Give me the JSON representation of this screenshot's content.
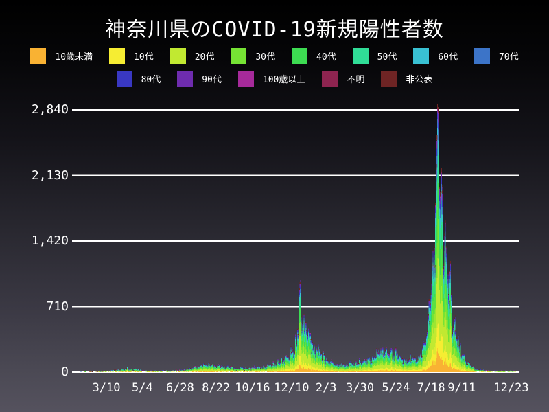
{
  "title": "神奈川県のCOVID-19新規陽性者数",
  "chart_data": {
    "type": "area",
    "stacked": true,
    "title": "神奈川県のCOVID-19新規陽性者数",
    "xlabel": "",
    "ylabel": "",
    "grid": true,
    "legend_position": "top",
    "background": "dark-gradient",
    "y_ticks": [
      "0",
      "710",
      "1,420",
      "2,130",
      "2,840"
    ],
    "y_tick_values": [
      0,
      710,
      1420,
      2130,
      2840
    ],
    "ylim": [
      0,
      2840
    ],
    "x_tick_labels": [
      "3/10",
      "5/4",
      "6/28",
      "8/22",
      "10/16",
      "12/10",
      "2/3",
      "3/30",
      "5/24",
      "7/18",
      "9/11",
      "12/23"
    ],
    "x_tick_days": [
      39,
      94,
      152,
      207,
      263,
      323,
      376,
      428,
      483,
      537,
      584,
      660
    ],
    "total_days": 668,
    "peak_value": 2840,
    "highlight_days": [
      336,
      547
    ],
    "total_keypoints": [
      [
        0,
        2
      ],
      [
        20,
        4
      ],
      [
        39,
        12
      ],
      [
        55,
        30
      ],
      [
        70,
        52
      ],
      [
        80,
        48
      ],
      [
        95,
        22
      ],
      [
        115,
        14
      ],
      [
        135,
        16
      ],
      [
        155,
        28
      ],
      [
        170,
        60
      ],
      [
        185,
        95
      ],
      [
        200,
        112
      ],
      [
        212,
        92
      ],
      [
        225,
        70
      ],
      [
        240,
        58
      ],
      [
        255,
        62
      ],
      [
        270,
        74
      ],
      [
        285,
        95
      ],
      [
        300,
        132
      ],
      [
        310,
        175
      ],
      [
        320,
        245
      ],
      [
        327,
        320
      ],
      [
        332,
        600
      ],
      [
        336,
        980
      ],
      [
        341,
        800
      ],
      [
        346,
        630
      ],
      [
        352,
        500
      ],
      [
        358,
        380
      ],
      [
        365,
        300
      ],
      [
        371,
        230
      ],
      [
        376,
        190
      ],
      [
        385,
        142
      ],
      [
        395,
        116
      ],
      [
        405,
        106
      ],
      [
        415,
        122
      ],
      [
        425,
        142
      ],
      [
        435,
        162
      ],
      [
        445,
        205
      ],
      [
        455,
        295
      ],
      [
        462,
        335
      ],
      [
        470,
        300
      ],
      [
        476,
        280
      ],
      [
        483,
        262
      ],
      [
        492,
        212
      ],
      [
        500,
        186
      ],
      [
        508,
        196
      ],
      [
        515,
        232
      ],
      [
        522,
        295
      ],
      [
        528,
        430
      ],
      [
        534,
        910
      ],
      [
        539,
        1700
      ],
      [
        543,
        2320
      ],
      [
        547,
        2840
      ],
      [
        551,
        2560
      ],
      [
        555,
        2260
      ],
      [
        560,
        1820
      ],
      [
        565,
        1360
      ],
      [
        570,
        910
      ],
      [
        576,
        560
      ],
      [
        581,
        360
      ],
      [
        586,
        245
      ],
      [
        591,
        158
      ],
      [
        598,
        92
      ],
      [
        605,
        50
      ],
      [
        613,
        30
      ],
      [
        622,
        19
      ],
      [
        632,
        15
      ],
      [
        642,
        13
      ],
      [
        652,
        13
      ],
      [
        660,
        15
      ],
      [
        668,
        11
      ]
    ],
    "age_groups": [
      {
        "label": "10歳未満",
        "color": "#F9B233",
        "share": 0.08
      },
      {
        "label": "10代",
        "color": "#F6ED32",
        "share": 0.1
      },
      {
        "label": "20代",
        "color": "#C1E931",
        "share": 0.24
      },
      {
        "label": "30代",
        "color": "#76E334",
        "share": 0.17
      },
      {
        "label": "40代",
        "color": "#3DDC52",
        "share": 0.15
      },
      {
        "label": "50代",
        "color": "#30DD97",
        "share": 0.11
      },
      {
        "label": "60代",
        "color": "#39C1D3",
        "share": 0.05
      },
      {
        "label": "70代",
        "color": "#3C74C8",
        "share": 0.04
      },
      {
        "label": "80代",
        "color": "#3938C3",
        "share": 0.03
      },
      {
        "label": "90代",
        "color": "#6E2CAE",
        "share": 0.015
      },
      {
        "label": "100歳以上",
        "color": "#A62A9A",
        "share": 0.002
      },
      {
        "label": "不明",
        "color": "#8E2450",
        "share": 0.002
      },
      {
        "label": "非公表",
        "color": "#6E2424",
        "share": 0.011
      }
    ],
    "legend_row_split": 8
  }
}
